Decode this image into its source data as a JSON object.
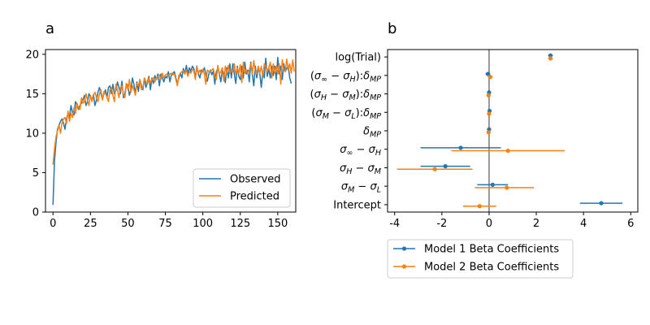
{
  "panels": {
    "a": "a",
    "b": "b"
  },
  "colors": {
    "model1": "#1f77b4",
    "model2": "#ff7f0e",
    "observed": "#1f77b4",
    "predicted": "#ff7f0e",
    "zeroline": "#808080"
  },
  "chart_data": [
    {
      "type": "line",
      "panel": "a",
      "xlim": [
        -5,
        162
      ],
      "ylim": [
        0,
        20.6
      ],
      "xticks": [
        0,
        25,
        50,
        75,
        100,
        125,
        150
      ],
      "yticks": [
        0,
        5,
        10,
        15,
        20
      ],
      "legend": {
        "placement": "lower-right"
      },
      "series": [
        {
          "name": "Observed",
          "values": [
            0.9,
            6.5,
            8.8,
            10.5,
            11.0,
            11.5,
            11.8,
            11.3,
            10.5,
            11.8,
            12.5,
            12.0,
            13.5,
            12.6,
            12.3,
            14.0,
            13.6,
            13.0,
            13.5,
            13.8,
            14.2,
            14.8,
            13.5,
            14.0,
            15.0,
            14.6,
            14.2,
            14.9,
            13.5,
            14.2,
            15.2,
            15.8,
            15.0,
            14.3,
            15.0,
            15.5,
            14.5,
            15.8,
            16.0,
            15.0,
            16.2,
            15.0,
            15.4,
            16.5,
            15.8,
            15.0,
            16.6,
            14.5,
            15.0,
            16.3,
            16.0,
            14.8,
            15.5,
            17.0,
            16.2,
            15.0,
            16.5,
            15.3,
            16.8,
            16.0,
            15.5,
            17.0,
            15.8,
            16.5,
            17.2,
            15.5,
            17.0,
            16.3,
            17.3,
            16.8,
            17.5,
            16.0,
            17.5,
            17.0,
            16.5,
            17.2,
            17.0,
            17.8,
            16.5,
            17.4,
            17.6,
            17.8,
            17.0,
            16.3,
            17.0,
            17.6,
            17.0,
            18.2,
            17.5,
            18.6,
            17.5,
            18.3,
            17.8,
            18.5,
            18.2,
            17.0,
            18.5,
            17.5,
            17.0,
            18.0,
            17.8,
            18.3,
            17.5,
            16.6,
            17.5,
            18.0,
            17.4,
            17.9,
            16.2,
            17.8,
            18.2,
            17.5,
            16.5,
            18.0,
            17.6,
            16.4,
            18.3,
            17.0,
            18.8,
            17.0,
            18.8,
            17.5,
            16.3,
            18.5,
            17.2,
            16.8,
            18.5,
            17.0,
            19.0,
            17.5,
            18.0,
            16.5,
            19.0,
            17.5,
            16.0,
            18.5,
            17.0,
            18.2,
            17.6,
            15.8,
            17.8,
            17.0,
            19.5,
            17.2,
            18.2,
            17.0,
            18.5,
            17.3,
            18.5,
            16.8,
            19.6,
            17.5,
            18.5,
            16.8,
            18.8,
            17.8,
            18.2,
            18.5,
            17.0,
            16.3
          ],
          "color": "#1f77b4"
        },
        {
          "name": "Predicted",
          "values": [
            6.0,
            8.0,
            9.5,
            10.3,
            11.0,
            10.0,
            11.3,
            11.8,
            12.0,
            11.2,
            12.8,
            11.5,
            12.5,
            12.0,
            13.2,
            12.5,
            13.8,
            13.2,
            13.0,
            14.5,
            13.8,
            14.0,
            15.0,
            14.2,
            13.5,
            14.8,
            14.0,
            14.8,
            15.2,
            14.5,
            14.0,
            15.0,
            15.5,
            14.2,
            15.3,
            15.0,
            14.6,
            14.0,
            15.5,
            15.8,
            14.8,
            14.0,
            16.2,
            15.5,
            14.5,
            15.8,
            16.0,
            15.0,
            14.5,
            16.3,
            15.5,
            16.8,
            15.2,
            16.0,
            15.5,
            14.8,
            16.3,
            16.0,
            16.8,
            15.5,
            15.8,
            17.0,
            16.5,
            16.2,
            17.0,
            16.4,
            16.8,
            17.0,
            16.5,
            17.0,
            17.2,
            17.4,
            16.8,
            17.6,
            17.0,
            17.4,
            17.5,
            17.3,
            17.5,
            17.6,
            17.4,
            17.5,
            16.8,
            16.0,
            17.3,
            17.6,
            17.8,
            17.9,
            17.5,
            18.0,
            17.2,
            17.8,
            17.6,
            18.1,
            17.9,
            16.8,
            18.4,
            17.6,
            18.0,
            17.5,
            18.1,
            17.5,
            16.2,
            18.0,
            17.8,
            17.8,
            18.0,
            18.2,
            17.2,
            16.8,
            18.6,
            17.5,
            17.8,
            18.3,
            16.6,
            18.5,
            17.5,
            18.6,
            17.6,
            18.0,
            17.8,
            18.8,
            17.4,
            18.3,
            17.6,
            18.7,
            16.4,
            19.0,
            17.6,
            18.0,
            17.5,
            18.0,
            18.8,
            17.5,
            19.2,
            17.8,
            17.5,
            18.5,
            17.6,
            18.5,
            17.2,
            18.8,
            18.5,
            17.8,
            18.3,
            19.0,
            17.0,
            18.8,
            17.6,
            18.5,
            17.5,
            18.8,
            16.2,
            19.3,
            18.0,
            17.8,
            19.4,
            18.0,
            18.8,
            17.6,
            19.3,
            17.8
          ],
          "color": "#ff7f0e"
        }
      ]
    },
    {
      "type": "errorbar",
      "panel": "b",
      "xlim": [
        -4.3,
        6.3
      ],
      "xticks": [
        -4,
        -2,
        0,
        2,
        4,
        6
      ],
      "categories": [
        {
          "pre": "log(Trial)"
        },
        {
          "pre": "(",
          "m": "σ",
          "sub1": "∞",
          "mid": " − ",
          "m2": "σ",
          "sub2": "H",
          "post": "):",
          "m3": "δ",
          "sub3": "MP"
        },
        {
          "pre": "(",
          "m": "σ",
          "sub1": "H",
          "mid": " − ",
          "m2": "σ",
          "sub2": "M",
          "post": "):",
          "m3": "δ",
          "sub3": "MP"
        },
        {
          "pre": "(",
          "m": "σ",
          "sub1": "M",
          "mid": " − ",
          "m2": "σ",
          "sub2": "L",
          "post": "):",
          "m3": "δ",
          "sub3": "MP"
        },
        {
          "pre": "",
          "m": "δ",
          "sub1": "MP"
        },
        {
          "pre": "",
          "m": "σ",
          "sub1": "∞",
          "mid": " − ",
          "m2": "σ",
          "sub2": "H"
        },
        {
          "pre": "",
          "m": "σ",
          "sub1": "H",
          "mid": " − ",
          "m2": "σ",
          "sub2": "M"
        },
        {
          "pre": "",
          "m": "σ",
          "sub1": "M",
          "mid": " − ",
          "m2": "σ",
          "sub2": "L"
        },
        {
          "pre": "Intercept"
        }
      ],
      "series": [
        {
          "name": "Model 1 Beta Coefficients",
          "color": "#1f77b4",
          "offset": 0.08,
          "values": [
            2.6,
            -0.05,
            0.0,
            0.02,
            0.0,
            -1.2,
            -1.85,
            0.15,
            4.75
          ],
          "lower": [
            2.5,
            -0.15,
            -0.05,
            -0.02,
            -0.03,
            -2.9,
            -2.9,
            -0.5,
            3.85
          ],
          "upper": [
            2.7,
            0.05,
            0.05,
            0.06,
            0.03,
            0.5,
            -0.8,
            0.8,
            5.65
          ]
        },
        {
          "name": "Model 2 Beta Coefficients",
          "color": "#ff7f0e",
          "offset": -0.08,
          "values": [
            2.6,
            0.05,
            -0.02,
            0.0,
            -0.02,
            0.8,
            -2.3,
            0.75,
            -0.4
          ],
          "lower": [
            2.5,
            -0.05,
            -0.1,
            -0.05,
            -0.06,
            -1.6,
            -3.9,
            -0.6,
            -1.1
          ],
          "upper": [
            2.7,
            0.15,
            0.06,
            0.05,
            0.02,
            3.2,
            -0.7,
            1.9,
            0.3
          ]
        }
      ],
      "legend": {
        "placement": "below"
      }
    }
  ]
}
